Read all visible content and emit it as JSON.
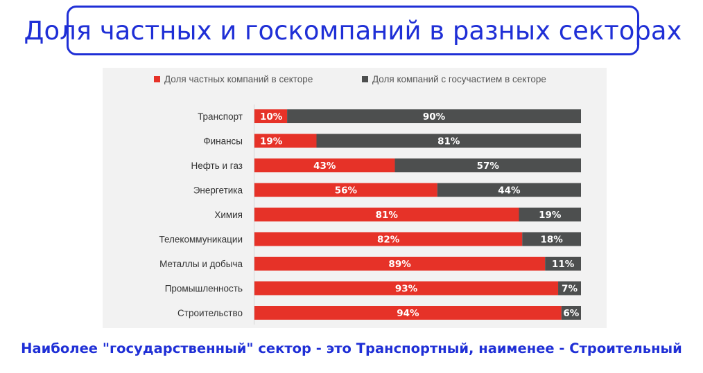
{
  "title": "Доля частных и госкомпаний в разных секторах",
  "caption": "Наиболее \"государственный\" сектор - это Транспортный, наименее - Строительный",
  "colors": {
    "private": "#e63228",
    "state": "#4d4f4f",
    "accent": "#1f2fd6",
    "panel": "#f2f2f2"
  },
  "chart_data": {
    "type": "bar",
    "orientation": "horizontal",
    "stacked": true,
    "normalized_percent": true,
    "legend_position": "top",
    "categories": [
      "Транспорт",
      "Финансы",
      "Нефть и газ",
      "Энергетика",
      "Химия",
      "Телекоммуникации",
      "Металлы и добыча",
      "Промышленность",
      "Строительство"
    ],
    "series": [
      {
        "name": "Доля частных компаний в секторе",
        "values": [
          10,
          19,
          43,
          56,
          81,
          82,
          89,
          93,
          94
        ]
      },
      {
        "name": "Доля компаний с госучастием в секторе",
        "values": [
          90,
          81,
          57,
          44,
          19,
          18,
          11,
          7,
          6
        ]
      }
    ],
    "value_suffix": "%",
    "xlim": [
      0,
      100
    ]
  }
}
